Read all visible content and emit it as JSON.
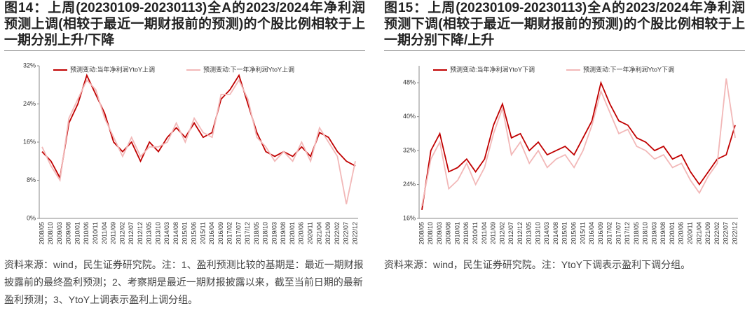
{
  "chart_data": [
    {
      "type": "line",
      "title": "图14：上周(20230109-20230113)全A的2023/2024年净利润预测上调(相较于最近一期财报前的预测)的个股比例相较于上一期分别上升/下降",
      "note": "资料来源：wind，民生证券研究院。注：1、盈利预测比较的基期是：最近一期财报披露前的最终盈利预测；2、考察期是最近一期财报披露以来，截至当前日期的最新盈利预测；3、YtoY上调表示盈利上调分组。",
      "categories": [
        "2008/05",
        "2008/10",
        "2009/03",
        "2009/08",
        "2010/01",
        "2010/06",
        "2010/11",
        "2011/04",
        "2011/09",
        "2012/02",
        "2012/07",
        "2012/12",
        "2013/05",
        "2013/10",
        "2014/03",
        "2014/08",
        "2015/01",
        "2015/06",
        "2015/11",
        "2016/04",
        "2016/09",
        "2017/02",
        "2017/07",
        "2017/12",
        "2018/05",
        "2018/10",
        "2019/03",
        "2019/08",
        "2020/01",
        "2020/06",
        "2020/11",
        "2021/04",
        "2021/09",
        "2022/02",
        "2022/07",
        "2022/12"
      ],
      "series": [
        {
          "name": "预测变动:当年净利润YtoY上调",
          "color": "#c00000",
          "values": [
            14,
            12,
            8.5,
            20,
            24,
            30,
            26,
            22,
            16,
            14,
            16,
            12,
            16,
            14,
            17,
            19,
            17,
            20,
            17,
            18,
            25,
            27,
            30,
            24,
            18,
            14,
            13,
            14,
            13,
            15,
            13,
            18,
            17,
            14,
            12,
            11
          ]
        },
        {
          "name": "预测变动:下一年净利润YtoY上调",
          "color": "#f2b8b8",
          "values": [
            15,
            11,
            8,
            21,
            25,
            29,
            27,
            21,
            17,
            13,
            17,
            13,
            15,
            15,
            16,
            20,
            16,
            21,
            18,
            17,
            26,
            26,
            29,
            25,
            17,
            15,
            12,
            14,
            12,
            16,
            12,
            19,
            16,
            13,
            3,
            12
          ]
        }
      ],
      "ylim": [
        0,
        32
      ],
      "yticks": [
        {
          "value": 0,
          "label": "0%"
        },
        {
          "value": 8,
          "label": "8%"
        },
        {
          "value": 16,
          "label": "16%"
        },
        {
          "value": 24,
          "label": "24%"
        },
        {
          "value": 32,
          "label": "32%"
        }
      ],
      "grid": false
    },
    {
      "type": "line",
      "title": "图15：上周(20230109-20230113)全A的2023/2024年净利润预测下调(相较于最近一期财报前的预测)的个股比例相较于上一期分别下降/上升",
      "note": "资料来源：wind，民生证券研究院。注：YtoY下调表示盈利下调分组。",
      "categories": [
        "2008/05",
        "2008/10",
        "2009/03",
        "2009/08",
        "2010/01",
        "2010/06",
        "2010/11",
        "2011/04",
        "2011/09",
        "2012/02",
        "2012/07",
        "2012/12",
        "2013/05",
        "2013/10",
        "2014/03",
        "2014/08",
        "2015/01",
        "2015/06",
        "2015/11",
        "2016/04",
        "2016/09",
        "2017/02",
        "2017/07",
        "2017/12",
        "2018/05",
        "2018/10",
        "2019/03",
        "2019/08",
        "2020/01",
        "2020/06",
        "2020/11",
        "2021/04",
        "2021/09",
        "2022/02",
        "2022/07",
        "2022/12"
      ],
      "series": [
        {
          "name": "预测变动:当年净利润YtoY下调",
          "color": "#c00000",
          "values": [
            18,
            32,
            36,
            27,
            28,
            30,
            27,
            30,
            38,
            43,
            35,
            36,
            32,
            34,
            31,
            32,
            33,
            31,
            35,
            39,
            48,
            43,
            39,
            38,
            35,
            34,
            32,
            33,
            30,
            31,
            27,
            24,
            27,
            30,
            31,
            38
          ]
        },
        {
          "name": "预测变动:下一年净利润YtoY下调",
          "color": "#f2b8b8",
          "values": [
            19,
            30,
            34,
            23,
            25,
            29,
            24,
            28,
            36,
            42,
            31,
            34,
            29,
            32,
            28,
            30,
            31,
            28,
            32,
            38,
            46,
            41,
            36,
            37,
            33,
            32,
            30,
            31,
            28,
            29,
            25,
            22,
            26,
            29,
            49,
            35
          ]
        }
      ],
      "ylim": [
        16,
        52
      ],
      "yticks": [
        {
          "value": 16,
          "label": "16%"
        },
        {
          "value": 24,
          "label": "24%"
        },
        {
          "value": 32,
          "label": "32%"
        },
        {
          "value": 40,
          "label": "40%"
        },
        {
          "value": 48,
          "label": "48%"
        }
      ],
      "grid": false
    }
  ]
}
